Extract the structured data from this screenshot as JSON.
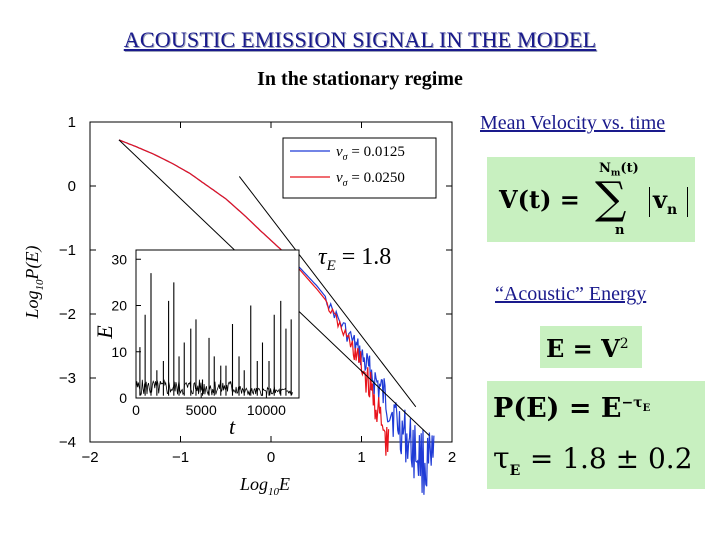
{
  "slide": {
    "title": "ACOUSTIC EMISSION SIGNAL IN THE MODEL",
    "subtitle": "In the stationary regime",
    "mean_velocity_label": "Mean Velocity vs. time",
    "acoustic_energy_label": "“Acoustic” Energy"
  },
  "equations": {
    "velocity": {
      "lhs": "V(t) =",
      "sum_top": "N",
      "sum_top_sub": "m",
      "sum_top_arg": "(t)",
      "sum_symbol": "∑",
      "sum_bottom": "n",
      "term": "v",
      "term_sub": "n"
    },
    "energy": {
      "lhs": "E = V",
      "exp": "2"
    },
    "power_law": {
      "lhs": "P(E) = E",
      "exp_prefix": "−τ",
      "exp_sub": "E",
      "tau": "τ",
      "tau_sub": "E",
      "value": "= 1.8 ± 0.2"
    }
  },
  "chart_data": [
    {
      "type": "line",
      "xlabel_main": "Log",
      "xlabel_sub": "10",
      "xlabel_var": "E",
      "ylabel_main": "Log",
      "ylabel_sub": "10",
      "ylabel_var": "P(E)",
      "xlim": [
        -2,
        2
      ],
      "ylim": [
        -4,
        1
      ],
      "xticks": [
        -2,
        -1,
        0,
        1,
        2
      ],
      "xtick_labels": [
        "−2",
        "−1",
        "0",
        "1",
        "2"
      ],
      "yticks": [
        1,
        0,
        -1,
        -2,
        -3,
        -4
      ],
      "ytick_labels": [
        "1",
        "0",
        "−1",
        "−2",
        "−3",
        "−4"
      ],
      "annotation": {
        "sym": "τ",
        "sub": "E",
        "val": "= 1.8"
      },
      "legend_position": "top-right",
      "series": [
        {
          "name_var": "v",
          "name_sub": "σ",
          "name_val": "= 0.0125",
          "color": "#1f3bd6",
          "x": [
            -1.68,
            -1.5,
            -1.3,
            -1.1,
            -0.9,
            -0.7,
            -0.5,
            -0.3,
            -0.1,
            0.1,
            0.3,
            0.5,
            0.7,
            0.9,
            1.0,
            1.1,
            1.2,
            1.3,
            1.4,
            1.5,
            1.6,
            1.7,
            1.8
          ],
          "y": [
            0.72,
            0.62,
            0.5,
            0.36,
            0.2,
            0.0,
            -0.2,
            -0.45,
            -0.72,
            -0.98,
            -1.25,
            -1.55,
            -1.9,
            -2.25,
            -2.45,
            -2.65,
            -2.85,
            -3.05,
            -3.3,
            -3.5,
            -3.65,
            -3.8,
            -3.9
          ]
        },
        {
          "name_var": "v",
          "name_sub": "σ",
          "name_val": "= 0.0250",
          "color": "#e8141c",
          "x": [
            -1.68,
            -1.5,
            -1.3,
            -1.1,
            -0.9,
            -0.7,
            -0.5,
            -0.3,
            -0.1,
            0.1,
            0.3,
            0.5,
            0.7,
            0.9,
            1.0,
            1.1,
            1.2,
            1.3
          ],
          "y": [
            0.72,
            0.62,
            0.5,
            0.36,
            0.2,
            0.0,
            -0.2,
            -0.45,
            -0.72,
            -0.98,
            -1.28,
            -1.6,
            -1.95,
            -2.35,
            -2.6,
            -2.9,
            -3.3,
            -3.8
          ]
        }
      ],
      "fit_lines": [
        {
          "color": "#000000",
          "x": [
            -1.68,
            1.75
          ],
          "y": [
            0.72,
            -3.9
          ]
        },
        {
          "color": "#000000",
          "x": [
            -0.35,
            1.6
          ],
          "y": [
            0.15,
            -3.45
          ]
        }
      ]
    },
    {
      "type": "line",
      "xlabel": "t",
      "ylabel": "E",
      "xlim": [
        0,
        12500
      ],
      "ylim": [
        0,
        32
      ],
      "xticks": [
        0,
        5000,
        10000
      ],
      "xtick_labels": [
        "0",
        "5000",
        "10000"
      ],
      "yticks": [
        0,
        10,
        20,
        30
      ],
      "ytick_labels": [
        "0",
        "10",
        "20",
        "30"
      ],
      "series": [
        {
          "color": "#000000",
          "spikes_t": [
            300,
            700,
            1150,
            1600,
            2100,
            2500,
            2900,
            3300,
            3700,
            4200,
            4600,
            5100,
            5600,
            6000,
            6500,
            6900,
            7400,
            7900,
            8300,
            8800,
            9300,
            9700,
            10200,
            10600,
            11100,
            11500,
            11900
          ],
          "spikes_E": [
            11,
            18,
            27,
            6,
            8,
            21,
            25,
            9,
            12,
            15,
            17,
            4,
            13,
            9,
            7,
            7,
            16,
            9,
            6,
            20,
            8,
            12,
            8,
            18,
            21,
            15,
            17
          ]
        }
      ]
    }
  ]
}
